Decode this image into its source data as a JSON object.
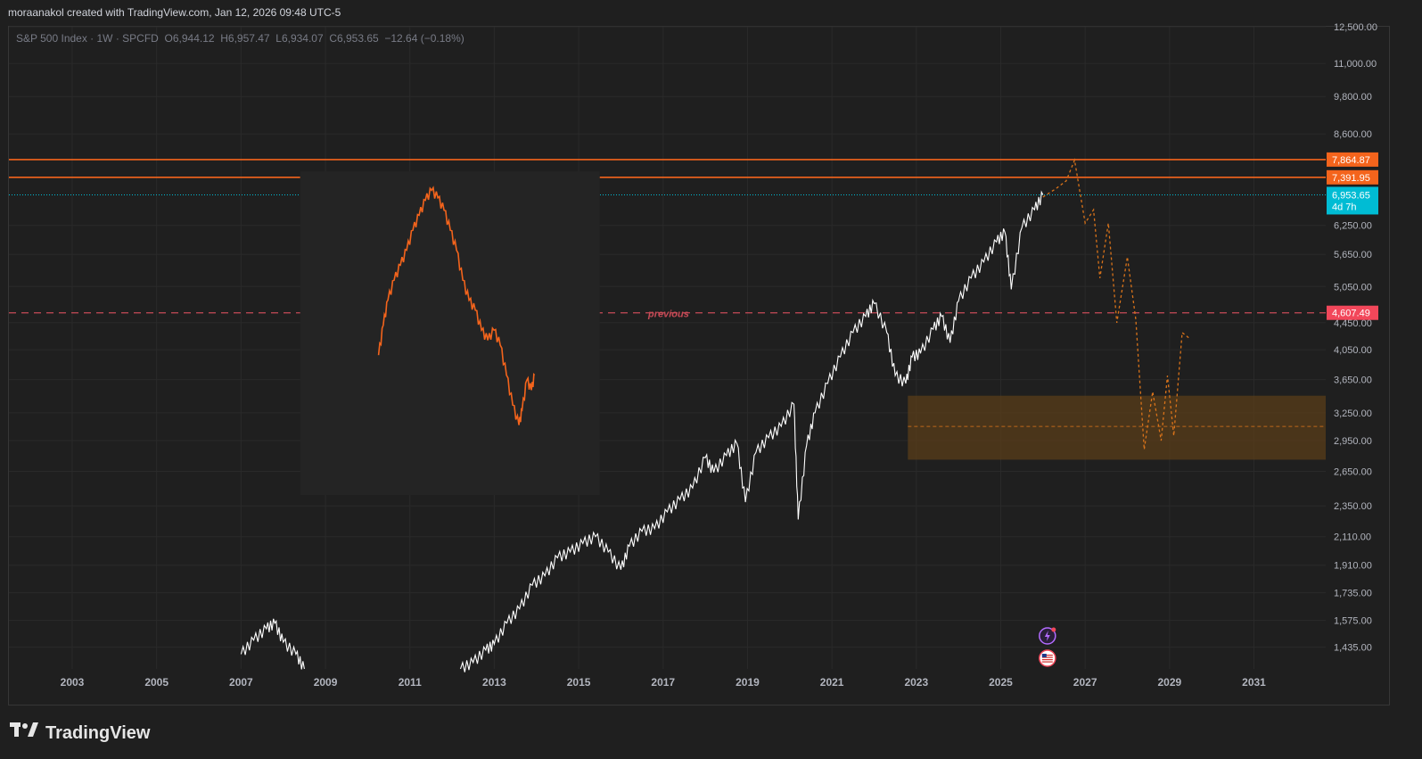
{
  "header": {
    "text": "moraanakol created with TradingView.com, Jan 12, 2026 09:48 UTC-5"
  },
  "legend": {
    "symbol": "S&P 500 Index · 1W · SPCFD",
    "ohlc": "O6,944.12  H6,957.47  L6,934.07  C6,953.65  −12.64 (−0.18%)"
  },
  "brand": {
    "name": "TradingView",
    "logo_icon": "tradingview-logo-icon"
  },
  "colors": {
    "background": "#1f1f1f",
    "grid": "#2a2a2a",
    "axis_text": "#b2b5be",
    "price_line": "#ffffff",
    "resistance": "#f4641c",
    "previous": "#c84b57",
    "last_price": "#00bcd4",
    "zone": "#5a3d1a",
    "forecast": "#d9731a",
    "overlay_bg": "#242424"
  },
  "chart_data": {
    "type": "line",
    "scale": "log",
    "xlim": [
      2001.5,
      2032.7
    ],
    "ylim": [
      1330,
      12500
    ],
    "x_ticks": [
      2003,
      2005,
      2007,
      2009,
      2011,
      2013,
      2015,
      2017,
      2019,
      2021,
      2023,
      2025,
      2027,
      2029,
      2031
    ],
    "y_ticks": [
      1435,
      1575,
      1735,
      1910,
      2110,
      2350,
      2650,
      2950,
      3250,
      3650,
      4050,
      4450,
      5050,
      5650,
      6250,
      8600,
      9800,
      11000,
      12500
    ],
    "y_tick_labels": [
      "1,435.00",
      "1,575.00",
      "1,735.00",
      "1,910.00",
      "2,110.00",
      "2,350.00",
      "2,650.00",
      "2,950.00",
      "3,250.00",
      "3,650.00",
      "4,050.00",
      "4,450.00",
      "5,050.00",
      "5,650.00",
      "6,250.00",
      "8,600.00",
      "9,800.00",
      "11,000.00",
      "12,500.00"
    ],
    "series": [
      {
        "points": [
          [
            2007.0,
            1400
          ],
          [
            2007.3,
            1470
          ],
          [
            2007.6,
            1530
          ],
          [
            2007.8,
            1560
          ],
          [
            2008.0,
            1460
          ],
          [
            2008.3,
            1400
          ],
          [
            2008.5,
            1330
          ],
          [
            2012.2,
            1330
          ],
          [
            2012.5,
            1360
          ],
          [
            2012.8,
            1420
          ],
          [
            2013.0,
            1450
          ],
          [
            2013.3,
            1560
          ],
          [
            2013.6,
            1640
          ],
          [
            2013.9,
            1780
          ],
          [
            2014.2,
            1840
          ],
          [
            2014.5,
            1960
          ],
          [
            2014.8,
            2000
          ],
          [
            2015.1,
            2060
          ],
          [
            2015.4,
            2110
          ],
          [
            2015.7,
            2000
          ],
          [
            2016.0,
            1880
          ],
          [
            2016.2,
            2040
          ],
          [
            2016.5,
            2150
          ],
          [
            2016.8,
            2170
          ],
          [
            2017.1,
            2300
          ],
          [
            2017.4,
            2400
          ],
          [
            2017.7,
            2500
          ],
          [
            2018.0,
            2780
          ],
          [
            2018.2,
            2640
          ],
          [
            2018.5,
            2800
          ],
          [
            2018.75,
            2920
          ],
          [
            2018.95,
            2380
          ],
          [
            2019.2,
            2830
          ],
          [
            2019.5,
            2980
          ],
          [
            2019.8,
            3100
          ],
          [
            2020.1,
            3350
          ],
          [
            2020.2,
            2240
          ],
          [
            2020.4,
            2900
          ],
          [
            2020.6,
            3250
          ],
          [
            2020.9,
            3600
          ],
          [
            2021.2,
            3950
          ],
          [
            2021.5,
            4300
          ],
          [
            2021.8,
            4550
          ],
          [
            2022.0,
            4760
          ],
          [
            2022.3,
            4300
          ],
          [
            2022.5,
            3700
          ],
          [
            2022.75,
            3600
          ],
          [
            2022.9,
            3950
          ],
          [
            2023.1,
            4000
          ],
          [
            2023.4,
            4350
          ],
          [
            2023.6,
            4550
          ],
          [
            2023.8,
            4150
          ],
          [
            2024.0,
            4800
          ],
          [
            2024.3,
            5200
          ],
          [
            2024.6,
            5500
          ],
          [
            2024.9,
            5900
          ],
          [
            2025.1,
            6100
          ],
          [
            2025.25,
            5000
          ],
          [
            2025.5,
            6200
          ],
          [
            2025.8,
            6600
          ],
          [
            2026.0,
            6953.65
          ]
        ]
      }
    ],
    "forecast": [
      [
        2026.0,
        6900
      ],
      [
        2026.3,
        7100
      ],
      [
        2026.55,
        7300
      ],
      [
        2026.75,
        7850
      ],
      [
        2027.0,
        6300
      ],
      [
        2027.2,
        6600
      ],
      [
        2027.35,
        5200
      ],
      [
        2027.55,
        6300
      ],
      [
        2027.75,
        4450
      ],
      [
        2028.0,
        5600
      ],
      [
        2028.2,
        4500
      ],
      [
        2028.4,
        2860
      ],
      [
        2028.6,
        3500
      ],
      [
        2028.8,
        2950
      ],
      [
        2028.95,
        3700
      ],
      [
        2029.1,
        3000
      ],
      [
        2029.3,
        4300
      ],
      [
        2029.5,
        4200
      ]
    ],
    "horizontal_lines": [
      {
        "value": 7864.87,
        "label": "7,864.87"
      },
      {
        "value": 7391.95,
        "label": "7,391.95"
      },
      {
        "value": 4607.49,
        "label": "4,607.49",
        "text": "previous"
      }
    ],
    "last_price": {
      "value": 6953.65,
      "label": "6,953.65",
      "countdown": "4d 7h"
    },
    "zone": {
      "x": [
        2022.8,
        2032.7
      ],
      "y": [
        2760,
        3450
      ],
      "mid": 3100
    },
    "inset": {
      "x": [
        2008.4,
        2015.5
      ],
      "y": [
        2850,
        7500
      ],
      "points": [
        [
          0.0,
          0.3
        ],
        [
          0.03,
          0.42
        ],
        [
          0.06,
          0.52
        ],
        [
          0.1,
          0.6
        ],
        [
          0.14,
          0.66
        ],
        [
          0.18,
          0.72
        ],
        [
          0.22,
          0.8
        ],
        [
          0.26,
          0.86
        ],
        [
          0.3,
          0.92
        ],
        [
          0.34,
          0.96
        ],
        [
          0.38,
          0.93
        ],
        [
          0.42,
          0.88
        ],
        [
          0.46,
          0.8
        ],
        [
          0.5,
          0.72
        ],
        [
          0.54,
          0.6
        ],
        [
          0.58,
          0.52
        ],
        [
          0.62,
          0.48
        ],
        [
          0.66,
          0.4
        ],
        [
          0.7,
          0.36
        ],
        [
          0.74,
          0.4
        ],
        [
          0.78,
          0.34
        ],
        [
          0.82,
          0.22
        ],
        [
          0.86,
          0.1
        ],
        [
          0.9,
          0.02
        ],
        [
          0.92,
          0.08
        ],
        [
          0.95,
          0.2
        ],
        [
          0.98,
          0.16
        ],
        [
          1.0,
          0.22
        ]
      ]
    },
    "event_icons": [
      {
        "name": "lightning-event-icon",
        "x": 2026.0
      },
      {
        "name": "us-flag-event-icon",
        "x": 2026.0
      }
    ]
  }
}
